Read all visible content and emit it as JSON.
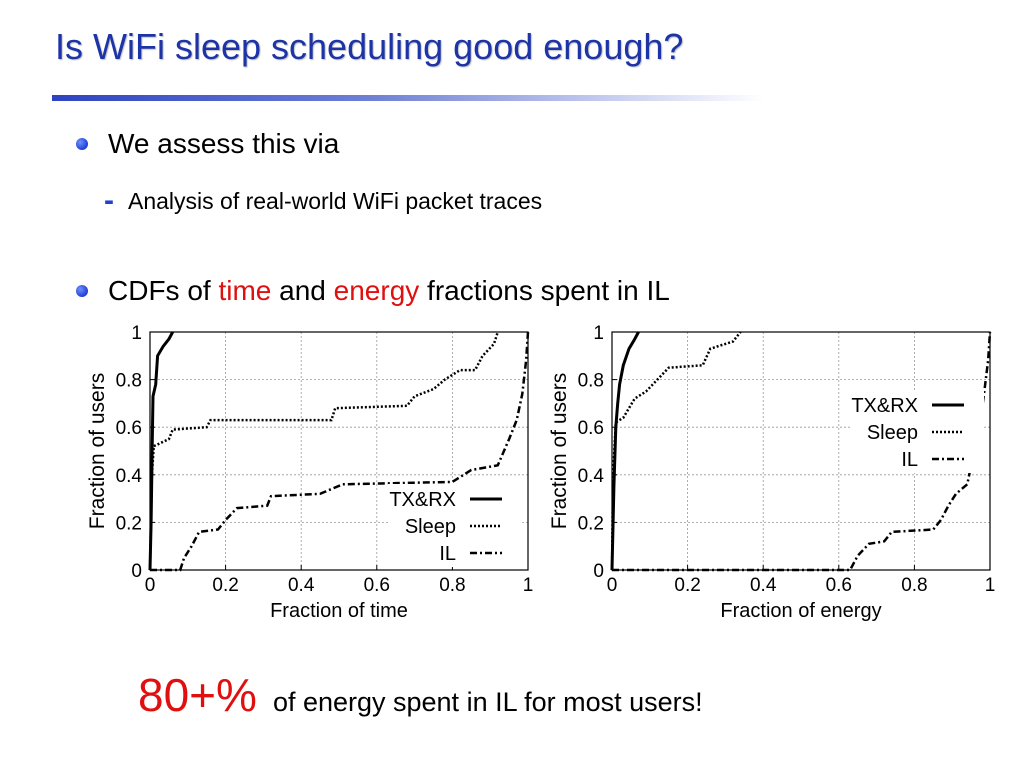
{
  "slide": {
    "title": "Is WiFi sleep scheduling good enough?",
    "bullets": [
      {
        "text": "We assess this via"
      },
      {
        "prefix": "CDFs of ",
        "time": "time",
        "mid": " and ",
        "energy": "energy",
        "suffix": " fractions spent in IL"
      }
    ],
    "sub_bullet": {
      "marker": "-",
      "text": "Analysis of real-world WiFi packet traces"
    },
    "conclusion": {
      "big": "80+%",
      "text": "of energy spent in IL for most users!"
    },
    "accent_color": "#1d34a8",
    "highlight_color": "#e01010"
  },
  "chart_data": [
    {
      "type": "line",
      "xlabel": "Fraction of time",
      "ylabel": "Fraction of users",
      "xlim": [
        0,
        1
      ],
      "ylim": [
        0,
        1
      ],
      "xticks": [
        "0",
        "0.2",
        "0.4",
        "0.6",
        "0.8",
        "1"
      ],
      "yticks": [
        "0",
        "0.2",
        "0.4",
        "0.6",
        "0.8",
        "1"
      ],
      "grid": true,
      "legend_position": "bottom-right",
      "series": [
        {
          "name": "TX&RX",
          "style": "solid",
          "points": [
            [
              0,
              0
            ],
            [
              0.003,
              0.2
            ],
            [
              0.006,
              0.55
            ],
            [
              0.008,
              0.73
            ],
            [
              0.015,
              0.78
            ],
            [
              0.02,
              0.9
            ],
            [
              0.035,
              0.94
            ],
            [
              0.05,
              0.97
            ],
            [
              0.06,
              1
            ]
          ]
        },
        {
          "name": "Sleep",
          "style": "dotted",
          "points": [
            [
              0,
              0
            ],
            [
              0.005,
              0.4
            ],
            [
              0.01,
              0.52
            ],
            [
              0.05,
              0.55
            ],
            [
              0.06,
              0.59
            ],
            [
              0.15,
              0.6
            ],
            [
              0.16,
              0.63
            ],
            [
              0.48,
              0.63
            ],
            [
              0.49,
              0.68
            ],
            [
              0.68,
              0.69
            ],
            [
              0.7,
              0.73
            ],
            [
              0.75,
              0.76
            ],
            [
              0.78,
              0.8
            ],
            [
              0.82,
              0.84
            ],
            [
              0.86,
              0.84
            ],
            [
              0.88,
              0.9
            ],
            [
              0.91,
              0.95
            ],
            [
              0.92,
              1
            ]
          ]
        },
        {
          "name": "IL",
          "style": "dashdot",
          "points": [
            [
              0,
              0
            ],
            [
              0.08,
              0
            ],
            [
              0.09,
              0.05
            ],
            [
              0.11,
              0.1
            ],
            [
              0.13,
              0.16
            ],
            [
              0.18,
              0.17
            ],
            [
              0.2,
              0.21
            ],
            [
              0.23,
              0.26
            ],
            [
              0.31,
              0.27
            ],
            [
              0.32,
              0.31
            ],
            [
              0.45,
              0.32
            ],
            [
              0.51,
              0.36
            ],
            [
              0.8,
              0.37
            ],
            [
              0.85,
              0.42
            ],
            [
              0.92,
              0.44
            ],
            [
              0.95,
              0.55
            ],
            [
              0.97,
              0.63
            ],
            [
              0.985,
              0.74
            ],
            [
              0.995,
              0.88
            ],
            [
              1,
              1
            ]
          ]
        }
      ]
    },
    {
      "type": "line",
      "xlabel": "Fraction of energy",
      "ylabel": "Fraction of users",
      "xlim": [
        0,
        1
      ],
      "ylim": [
        0,
        1
      ],
      "xticks": [
        "0",
        "0.2",
        "0.4",
        "0.6",
        "0.8",
        "1"
      ],
      "yticks": [
        "0",
        "0.2",
        "0.4",
        "0.6",
        "0.8",
        "1"
      ],
      "grid": true,
      "legend_position": "top-right",
      "series": [
        {
          "name": "TX&RX",
          "style": "solid",
          "points": [
            [
              0,
              0
            ],
            [
              0.005,
              0.35
            ],
            [
              0.01,
              0.6
            ],
            [
              0.015,
              0.7
            ],
            [
              0.02,
              0.78
            ],
            [
              0.03,
              0.86
            ],
            [
              0.045,
              0.93
            ],
            [
              0.06,
              0.97
            ],
            [
              0.07,
              1
            ]
          ]
        },
        {
          "name": "Sleep",
          "style": "dotted",
          "points": [
            [
              0,
              0
            ],
            [
              0.003,
              0.4
            ],
            [
              0.01,
              0.62
            ],
            [
              0.03,
              0.64
            ],
            [
              0.06,
              0.72
            ],
            [
              0.09,
              0.75
            ],
            [
              0.12,
              0.8
            ],
            [
              0.15,
              0.85
            ],
            [
              0.24,
              0.86
            ],
            [
              0.26,
              0.93
            ],
            [
              0.32,
              0.96
            ],
            [
              0.34,
              1
            ]
          ]
        },
        {
          "name": "IL",
          "style": "dashdot",
          "points": [
            [
              0,
              0
            ],
            [
              0.63,
              0
            ],
            [
              0.65,
              0.06
            ],
            [
              0.68,
              0.11
            ],
            [
              0.72,
              0.12
            ],
            [
              0.74,
              0.16
            ],
            [
              0.85,
              0.17
            ],
            [
              0.87,
              0.21
            ],
            [
              0.89,
              0.27
            ],
            [
              0.91,
              0.32
            ],
            [
              0.94,
              0.36
            ],
            [
              0.95,
              0.44
            ],
            [
              0.96,
              0.53
            ],
            [
              0.975,
              0.63
            ],
            [
              0.985,
              0.75
            ],
            [
              0.995,
              0.88
            ],
            [
              1,
              1
            ]
          ]
        }
      ]
    }
  ]
}
